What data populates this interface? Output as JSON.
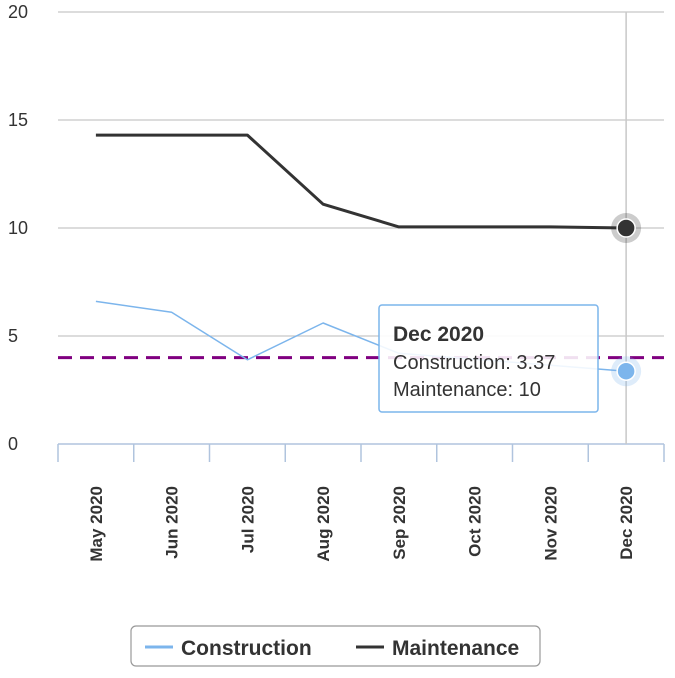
{
  "chart_data": {
    "type": "line",
    "categories": [
      "May 2020",
      "Jun 2020",
      "Jul 2020",
      "Aug 2020",
      "Sep 2020",
      "Oct 2020",
      "Nov 2020",
      "Dec 2020"
    ],
    "series": [
      {
        "name": "Construction",
        "values": [
          6.6,
          6.1,
          3.9,
          5.6,
          4.2,
          null,
          null,
          3.37
        ],
        "color": "#7cb5ec"
      },
      {
        "name": "Maintenance",
        "values": [
          14.3,
          14.3,
          14.3,
          11.1,
          10.05,
          10.05,
          10.05,
          10
        ],
        "color": "#333333"
      }
    ],
    "reference_line": {
      "value": 4,
      "color": "#800080",
      "style": "dashed"
    },
    "ylim": [
      0,
      20
    ],
    "yticks": [
      0,
      5,
      10,
      15,
      20
    ],
    "grid": true,
    "legend_position": "bottom-center",
    "tooltip": {
      "title": "Dec 2020",
      "lines": [
        "Construction: 3.37",
        "Maintenance: 10"
      ]
    },
    "hovered_index": 7
  }
}
